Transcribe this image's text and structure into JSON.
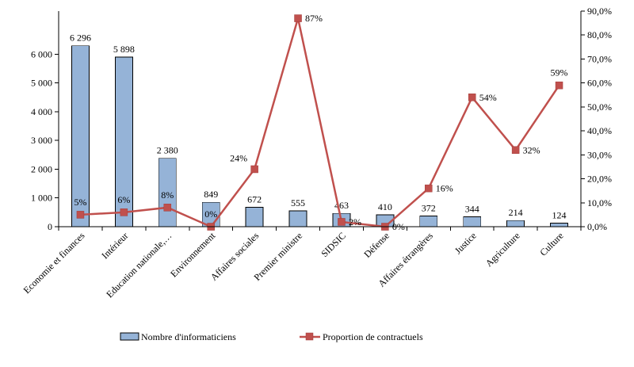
{
  "chart_data": {
    "type": "bar+line",
    "categories": [
      "Economie et finances",
      "Intérieur",
      "Education nationale,…",
      "Environnement",
      "Affaires sociales",
      "Premier ministre",
      "SIDSIC",
      "Défense",
      "Affaires étrangères",
      "Justice",
      "Agriculture",
      "Culture"
    ],
    "series": [
      {
        "name": "Nombre d'informaticiens",
        "type": "bar",
        "axis": "left",
        "color": "#95b3d7",
        "values": [
          6296,
          5898,
          2380,
          849,
          672,
          555,
          463,
          410,
          372,
          344,
          214,
          124
        ],
        "labels": [
          "6 296",
          "5 898",
          "2 380",
          "849",
          "672",
          "555",
          "463",
          "410",
          "372",
          "344",
          "214",
          "124"
        ]
      },
      {
        "name": "Proportion de contractuels",
        "type": "line",
        "axis": "right",
        "color": "#c0504d",
        "values": [
          5,
          6,
          8,
          0,
          24,
          87,
          2,
          0,
          16,
          54,
          32,
          59
        ],
        "labels": [
          "5%",
          "6%",
          "8%",
          "0%",
          "24%",
          "87%",
          "2%",
          "0%",
          "16%",
          "54%",
          "32%",
          "59%"
        ]
      }
    ],
    "y_left": {
      "ylim": [
        0,
        7500
      ],
      "ticks": [
        0,
        1000,
        2000,
        3000,
        4000,
        5000,
        6000
      ],
      "tick_labels": [
        "0",
        "1 000",
        "2 000",
        "3 000",
        "4 000",
        "5 000",
        "6 000"
      ]
    },
    "y_right": {
      "ylim": [
        0,
        90
      ],
      "ticks": [
        0,
        10,
        20,
        30,
        40,
        50,
        60,
        70,
        80,
        90
      ],
      "tick_labels": [
        "0,0%",
        "10,0%",
        "20,0%",
        "30,0%",
        "40,0%",
        "50,0%",
        "60,0%",
        "70,0%",
        "80,0%",
        "90,0%"
      ]
    },
    "title": "",
    "xlabel": "",
    "ylabel": "",
    "grid": false,
    "legend_position": "bottom"
  }
}
